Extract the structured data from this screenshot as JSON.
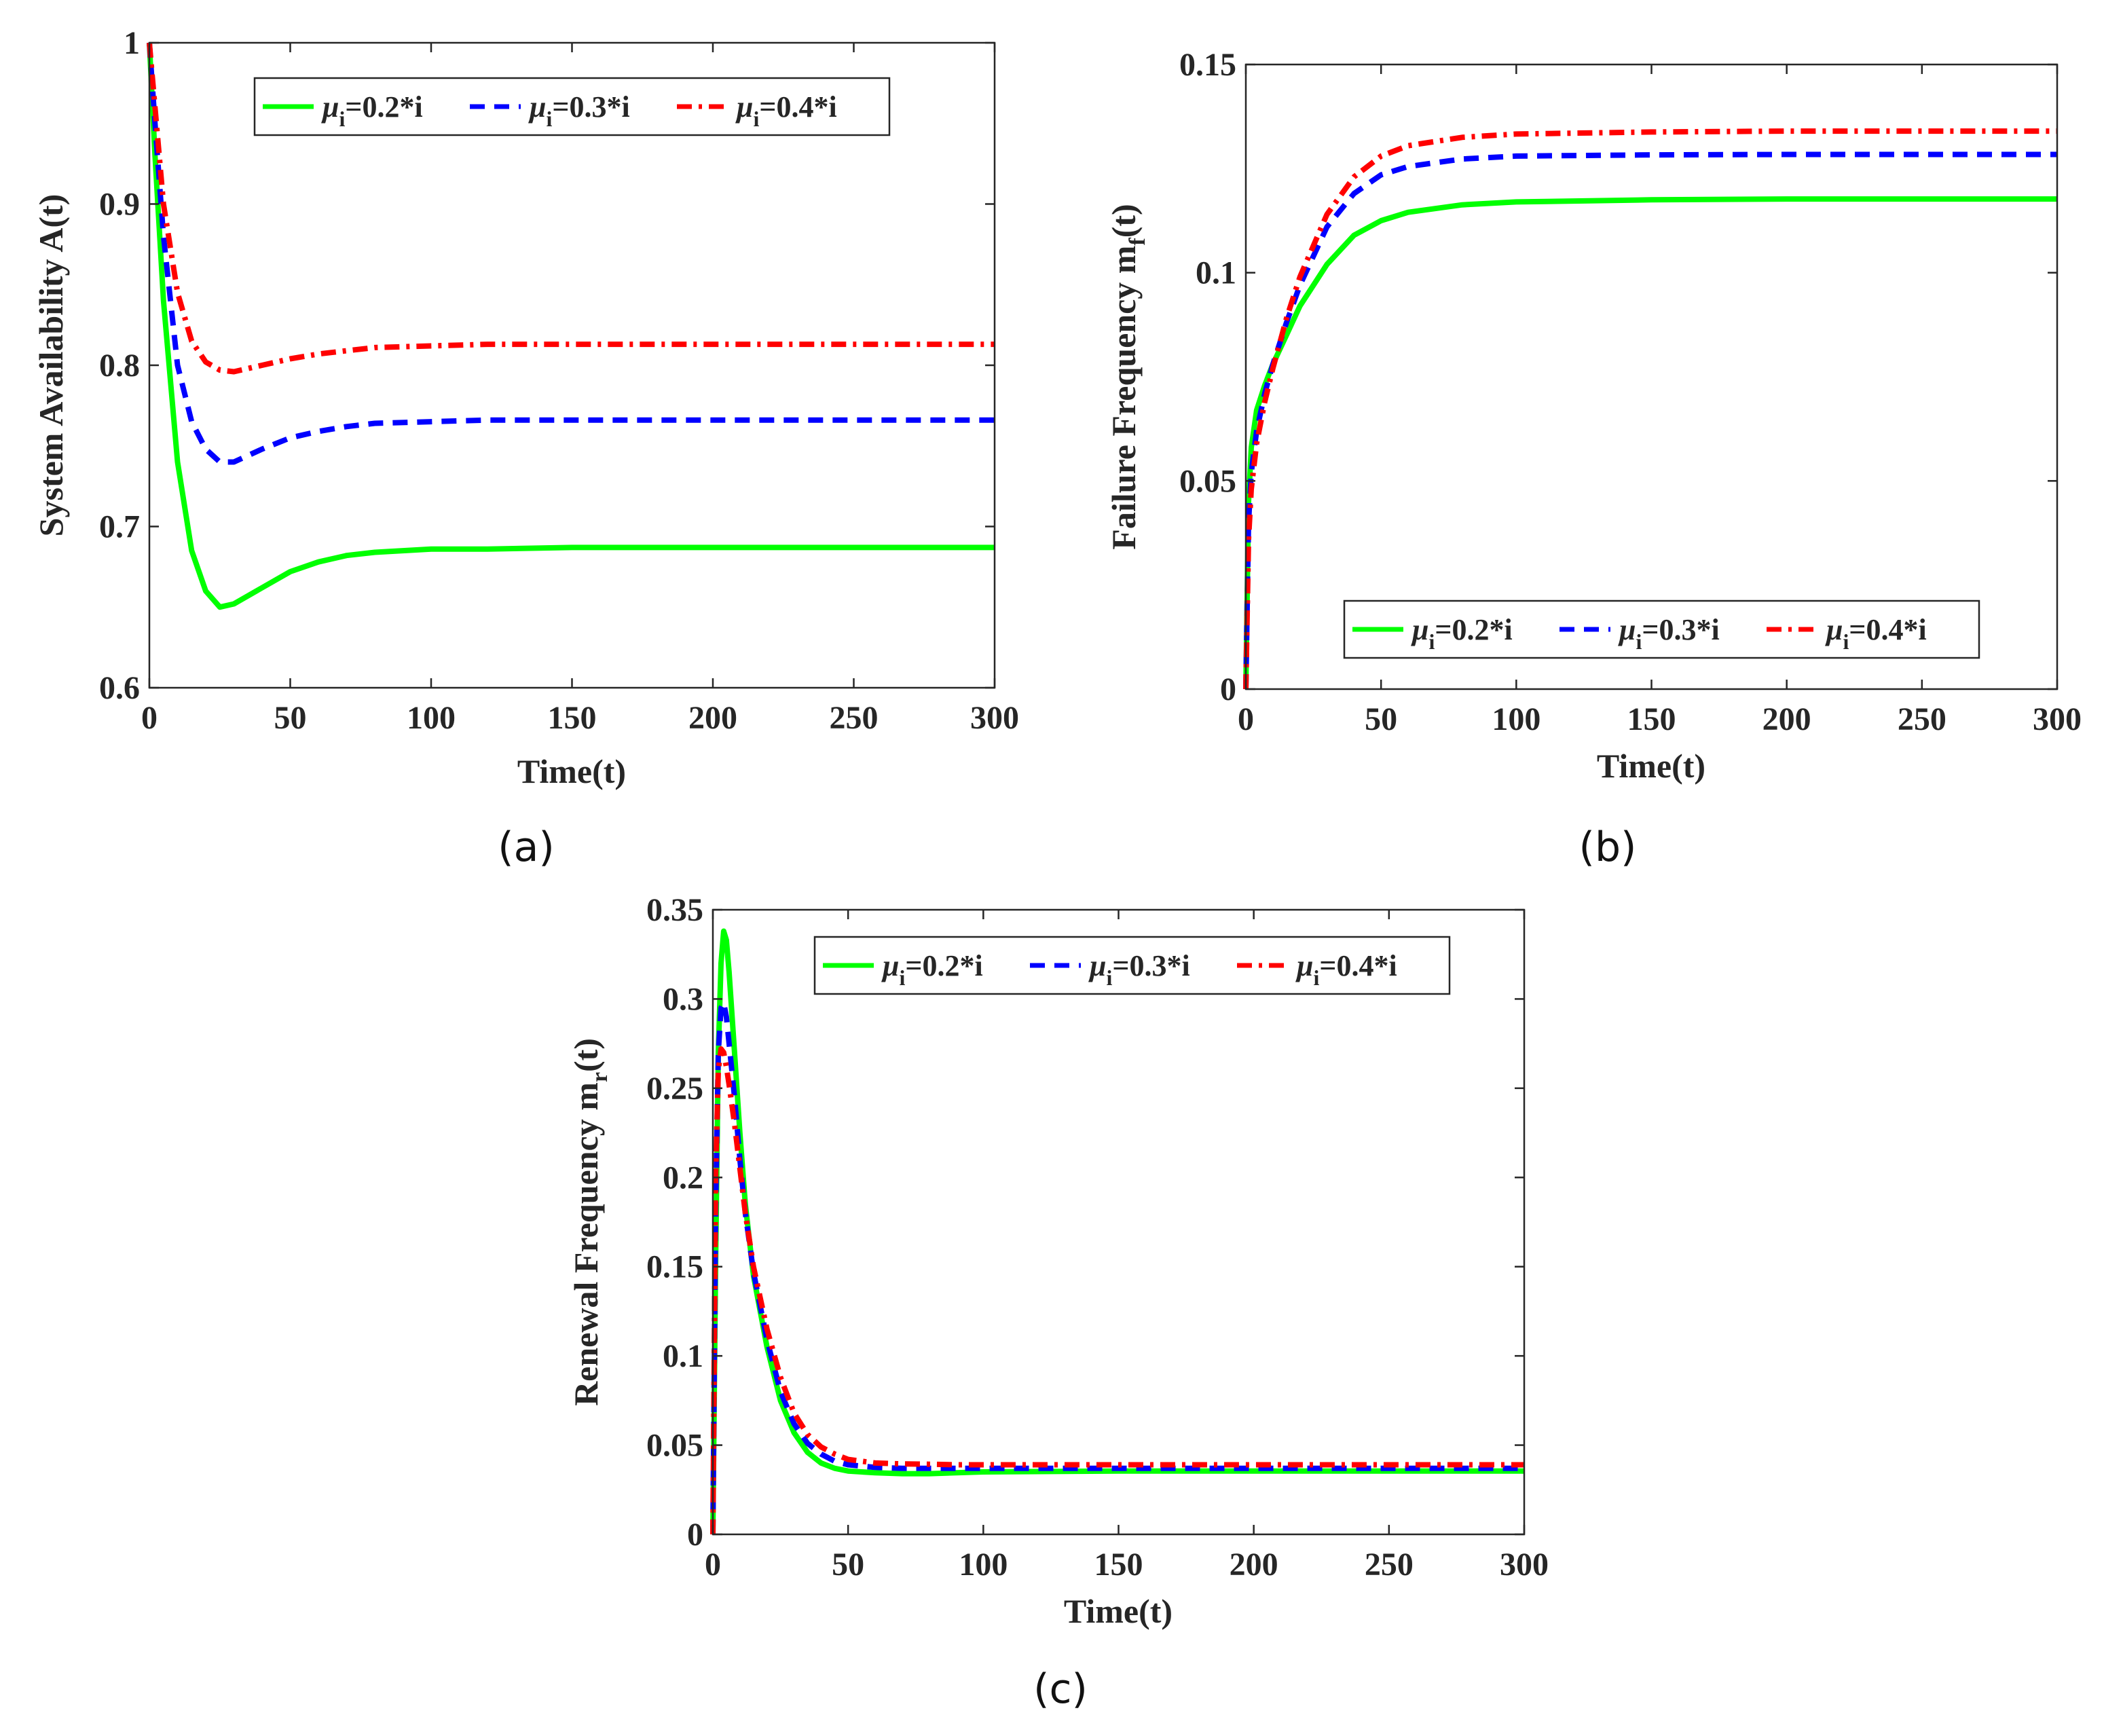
{
  "chart_data": [
    {
      "type": "line",
      "panel_label": "(a)",
      "xlabel": "Time(t)",
      "ylabel": "System Availability A(t)",
      "xlim": [
        0,
        300
      ],
      "ylim": [
        0.6,
        1
      ],
      "xticks": [
        0,
        50,
        100,
        150,
        200,
        250,
        300
      ],
      "yticks": [
        0.6,
        0.7,
        0.8,
        0.9,
        1
      ],
      "ytick_labels": [
        "0.6",
        "0.7",
        "0.8",
        "0.9",
        "1"
      ],
      "legend_position": "top",
      "x": [
        0,
        2,
        5,
        10,
        15,
        20,
        25,
        30,
        40,
        50,
        60,
        70,
        80,
        100,
        120,
        150,
        200,
        250,
        300
      ],
      "series": [
        {
          "name": "μi=0.2*i",
          "color": "#00ff00",
          "style": "solid",
          "values": [
            1.0,
            0.93,
            0.84,
            0.74,
            0.685,
            0.66,
            0.65,
            0.652,
            0.662,
            0.672,
            0.678,
            0.682,
            0.684,
            0.686,
            0.686,
            0.687,
            0.687,
            0.687,
            0.687
          ]
        },
        {
          "name": "μi=0.3*i",
          "color": "#0000ff",
          "style": "dashed",
          "values": [
            1.0,
            0.95,
            0.88,
            0.8,
            0.765,
            0.748,
            0.74,
            0.74,
            0.748,
            0.755,
            0.759,
            0.762,
            0.764,
            0.765,
            0.766,
            0.766,
            0.766,
            0.766,
            0.766
          ]
        },
        {
          "name": "μi=0.4*i",
          "color": "#ff0000",
          "style": "dashdot",
          "values": [
            1.0,
            0.96,
            0.9,
            0.845,
            0.815,
            0.802,
            0.797,
            0.796,
            0.8,
            0.804,
            0.807,
            0.809,
            0.811,
            0.812,
            0.813,
            0.813,
            0.813,
            0.813,
            0.813
          ]
        }
      ]
    },
    {
      "type": "line",
      "panel_label": "(b)",
      "xlabel": "Time(t)",
      "ylabel": "Failure Frequency m",
      "ylabel_sub": "f",
      "ylabel_tail": "(t)",
      "xlim": [
        0,
        300
      ],
      "ylim": [
        0,
        0.15
      ],
      "xticks": [
        0,
        50,
        100,
        150,
        200,
        250,
        300
      ],
      "yticks": [
        0,
        0.05,
        0.1,
        0.15
      ],
      "ytick_labels": [
        "0",
        "0.05",
        "0.1",
        "0.15"
      ],
      "legend_position": "bottom-right",
      "x": [
        0,
        1,
        2,
        4,
        7,
        10,
        15,
        20,
        30,
        40,
        50,
        60,
        80,
        100,
        150,
        200,
        250,
        300
      ],
      "series": [
        {
          "name": "μi=0.2*i",
          "color": "#00ff00",
          "style": "solid",
          "values": [
            0,
            0.045,
            0.058,
            0.067,
            0.073,
            0.078,
            0.085,
            0.092,
            0.102,
            0.109,
            0.1125,
            0.1145,
            0.1163,
            0.117,
            0.1175,
            0.1177,
            0.1177,
            0.1177
          ]
        },
        {
          "name": "μi=0.3*i",
          "color": "#0000ff",
          "style": "dashed",
          "values": [
            0,
            0.04,
            0.052,
            0.062,
            0.071,
            0.078,
            0.088,
            0.097,
            0.111,
            0.119,
            0.1235,
            0.1255,
            0.1273,
            0.128,
            0.1283,
            0.1284,
            0.1284,
            0.1284
          ]
        },
        {
          "name": "μi=0.4*i",
          "color": "#ff0000",
          "style": "dashdot",
          "values": [
            0,
            0.036,
            0.048,
            0.059,
            0.069,
            0.077,
            0.089,
            0.099,
            0.114,
            0.123,
            0.128,
            0.1305,
            0.1325,
            0.1333,
            0.1338,
            0.134,
            0.134,
            0.134
          ]
        }
      ]
    },
    {
      "type": "line",
      "panel_label": "(c)",
      "xlabel": "Time(t)",
      "ylabel": "Renewal Frequency m",
      "ylabel_sub": "r",
      "ylabel_tail": "(t)",
      "xlim": [
        0,
        300
      ],
      "ylim": [
        0,
        0.35
      ],
      "xticks": [
        0,
        50,
        100,
        150,
        200,
        250,
        300
      ],
      "yticks": [
        0,
        0.05,
        0.1,
        0.15,
        0.2,
        0.25,
        0.3,
        0.35
      ],
      "ytick_labels": [
        "0",
        "0.05",
        "0.1",
        "0.15",
        "0.2",
        "0.25",
        "0.3",
        "0.35"
      ],
      "legend_position": "top",
      "x": [
        0,
        1,
        2,
        3,
        4,
        5,
        6,
        8,
        10,
        12,
        15,
        20,
        25,
        30,
        35,
        40,
        45,
        50,
        60,
        70,
        80,
        90,
        100,
        150,
        200,
        250,
        300
      ],
      "series": [
        {
          "name": "μi=0.2*i",
          "color": "#00ff00",
          "style": "solid",
          "values": [
            0,
            0.15,
            0.27,
            0.32,
            0.338,
            0.333,
            0.315,
            0.27,
            0.225,
            0.185,
            0.145,
            0.105,
            0.075,
            0.057,
            0.046,
            0.04,
            0.037,
            0.0355,
            0.0345,
            0.034,
            0.034,
            0.0345,
            0.035,
            0.0355,
            0.0355,
            0.0355,
            0.0355
          ]
        },
        {
          "name": "μi=0.3*i",
          "color": "#0000ff",
          "style": "dashed",
          "values": [
            0,
            0.18,
            0.27,
            0.295,
            0.298,
            0.29,
            0.275,
            0.245,
            0.21,
            0.18,
            0.147,
            0.109,
            0.08,
            0.062,
            0.051,
            0.045,
            0.041,
            0.039,
            0.0375,
            0.037,
            0.037,
            0.037,
            0.037,
            0.037,
            0.037,
            0.037,
            0.037
          ]
        },
        {
          "name": "μi=0.4*i",
          "color": "#ff0000",
          "style": "dashdot",
          "values": [
            0,
            0.2,
            0.26,
            0.272,
            0.27,
            0.262,
            0.252,
            0.23,
            0.205,
            0.18,
            0.15,
            0.115,
            0.088,
            0.068,
            0.056,
            0.049,
            0.045,
            0.042,
            0.04,
            0.0395,
            0.0393,
            0.039,
            0.039,
            0.039,
            0.039,
            0.039,
            0.039
          ]
        }
      ]
    }
  ]
}
